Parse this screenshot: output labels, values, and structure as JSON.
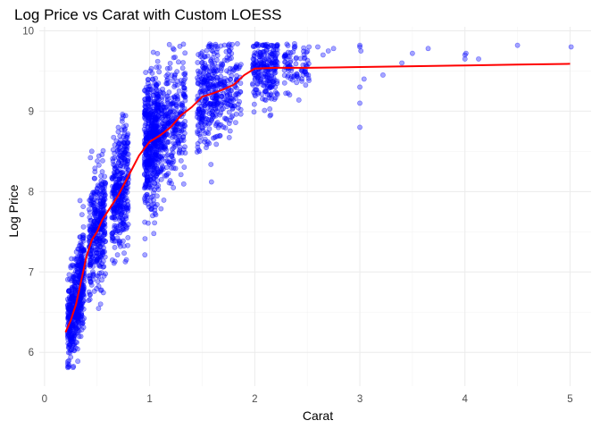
{
  "chart_data": {
    "type": "scatter",
    "title": "Log Price vs Carat with Custom LOESS",
    "xlabel": "Carat",
    "ylabel": "Log Price",
    "xlim": [
      -0.05,
      5.2
    ],
    "ylim": [
      5.58,
      10.05
    ],
    "x_ticks": [
      0,
      1,
      2,
      3,
      4,
      5
    ],
    "x_tick_labels": [
      "0",
      "1",
      "2",
      "3",
      "4",
      "5"
    ],
    "y_ticks": [
      6,
      7,
      8,
      9,
      10
    ],
    "y_tick_labels": [
      "6",
      "7",
      "8",
      "9",
      "10"
    ],
    "x_minor_ticks": [
      0.5,
      1.5,
      2.5,
      3.5,
      4.5
    ],
    "y_minor_ticks": [
      6.5,
      7.5,
      8.5,
      9.5
    ],
    "grid": true,
    "series": [
      {
        "name": "observations",
        "kind": "points",
        "color": "#0000ff",
        "opacity": 0.35,
        "description_points_note": "dense cloud; representative sample of extreme outliers listed",
        "outliers": [
          [
            2.6,
            9.8
          ],
          [
            2.65,
            9.7
          ],
          [
            2.7,
            9.75
          ],
          [
            2.75,
            9.78
          ],
          [
            3.0,
            9.82
          ],
          [
            3.0,
            9.8
          ],
          [
            3.0,
            9.3
          ],
          [
            3.0,
            9.1
          ],
          [
            3.0,
            8.8
          ],
          [
            3.01,
            9.75
          ],
          [
            3.04,
            9.4
          ],
          [
            3.22,
            9.45
          ],
          [
            3.4,
            9.6
          ],
          [
            3.5,
            9.72
          ],
          [
            3.65,
            9.78
          ],
          [
            4.0,
            9.65
          ],
          [
            4.0,
            9.7
          ],
          [
            4.01,
            9.72
          ],
          [
            4.13,
            9.65
          ],
          [
            4.5,
            9.82
          ],
          [
            5.01,
            9.8
          ]
        ]
      },
      {
        "name": "Custom LOESS",
        "kind": "line",
        "color": "#ff0000",
        "x": [
          0.2,
          0.25,
          0.3,
          0.35,
          0.4,
          0.45,
          0.5,
          0.55,
          0.6,
          0.7,
          0.8,
          0.9,
          1.0,
          1.1,
          1.2,
          1.3,
          1.4,
          1.5,
          1.6,
          1.7,
          1.8,
          1.9,
          2.0,
          2.2,
          2.5,
          3.0,
          3.5,
          4.0,
          4.5,
          5.0
        ],
        "y": [
          6.25,
          6.4,
          6.6,
          6.9,
          7.2,
          7.4,
          7.5,
          7.65,
          7.75,
          7.95,
          8.2,
          8.45,
          8.62,
          8.7,
          8.8,
          8.95,
          9.05,
          9.18,
          9.22,
          9.27,
          9.33,
          9.45,
          9.53,
          9.54,
          9.54,
          9.55,
          9.56,
          9.57,
          9.58,
          9.59
        ]
      }
    ]
  }
}
